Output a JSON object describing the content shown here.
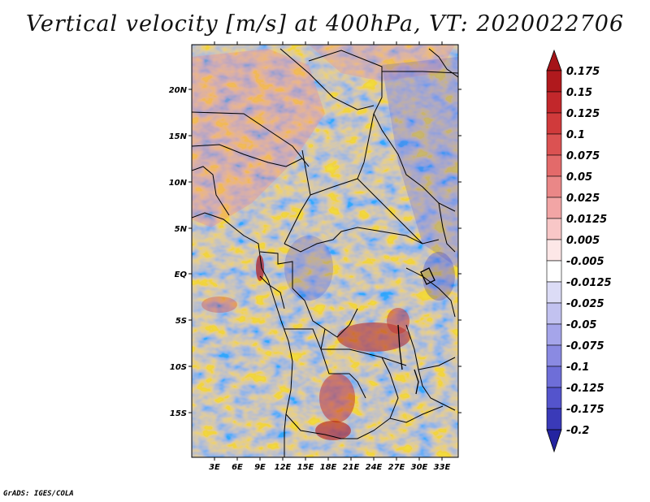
{
  "title": "Vertical velocity [m/s] at 400hPa, VT: 2020022706",
  "credit": "GrADS: IGES/COLA",
  "lat_labels": [
    "20N",
    "15N",
    "10N",
    "5N",
    "EQ",
    "5S",
    "10S",
    "15S"
  ],
  "lon_labels": [
    "3E",
    "6E",
    "9E",
    "12E",
    "15E",
    "18E",
    "21E",
    "24E",
    "27E",
    "30E",
    "33E"
  ],
  "colorbar": {
    "labels": [
      "0.175",
      "0.15",
      "0.125",
      "0.1",
      "0.075",
      "0.05",
      "0.025",
      "0.0125",
      "0.005",
      "-0.005",
      "-0.0125",
      "-0.025",
      "-0.05",
      "-0.075",
      "-0.1",
      "-0.125",
      "-0.175",
      "-0.2"
    ],
    "colors": [
      "#b0191d",
      "#c2272b",
      "#d03a3b",
      "#db5252",
      "#e36a6a",
      "#ea8787",
      "#f2a5a5",
      "#f8c7c7",
      "#fde7e7",
      "#ffffff",
      "#dcdcf6",
      "#c2c2f0",
      "#a5a5ea",
      "#8a8ae2",
      "#6e6ed8",
      "#5454cc",
      "#3a3ab8",
      "#2424a0",
      "#1c1c8c"
    ]
  },
  "colors": {
    "positive": "#e06060",
    "negative": "#7070e0",
    "neutral": "#f6f0f6"
  }
}
